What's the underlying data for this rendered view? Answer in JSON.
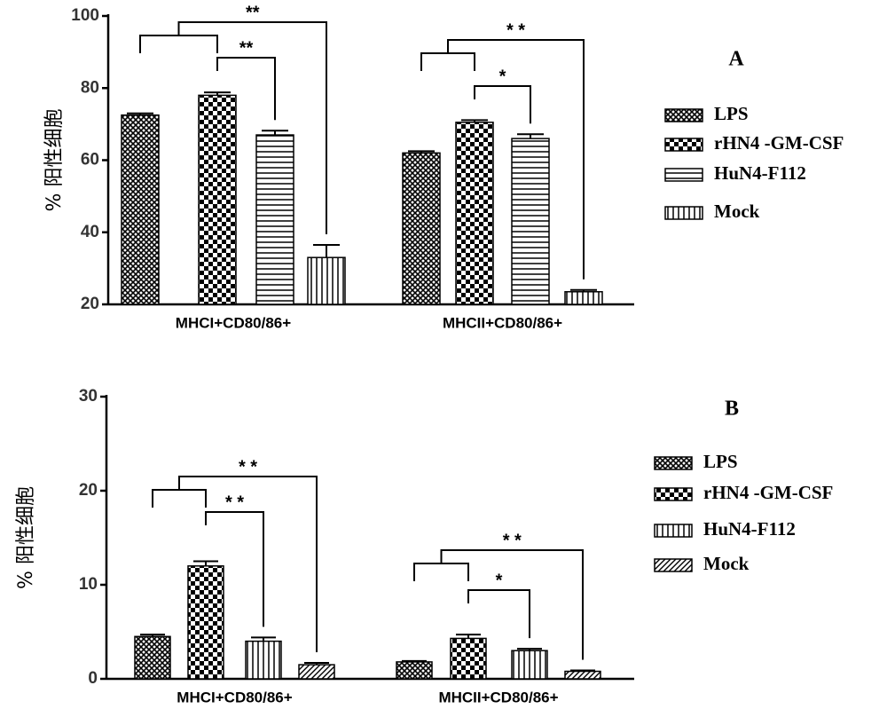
{
  "chart_data": [
    {
      "type": "bar",
      "panel": "A",
      "ylabel": "% 阳性细胞",
      "categories": [
        "MHCI+CD80/86+",
        "MHCII+CD80/86+"
      ],
      "ylim": [
        20,
        100
      ],
      "yticks": [
        20,
        40,
        60,
        80,
        100
      ],
      "series": [
        {
          "name": "LPS",
          "color": "#000000",
          "pattern": "crosshatch",
          "values": [
            72.5,
            62
          ],
          "errors": [
            0.5,
            0.5
          ]
        },
        {
          "name": "rHN4 -GM-CSF",
          "color": "#000000",
          "pattern": "checker",
          "values": [
            78,
            70.5
          ],
          "errors": [
            0.8,
            0.6
          ]
        },
        {
          "name": "HuN4-F112",
          "color": "#000000",
          "pattern": "horizontal",
          "values": [
            67,
            66
          ],
          "errors": [
            1.2,
            1.2
          ]
        },
        {
          "name": "Mock",
          "color": "#000000",
          "pattern": "vertical",
          "values": [
            33,
            23.5
          ],
          "errors": [
            3.5,
            0.5
          ]
        }
      ],
      "annotations": [
        "**",
        "**",
        "* *",
        "*"
      ]
    },
    {
      "type": "bar",
      "panel": "B",
      "ylabel": "% 阳性细胞",
      "categories": [
        "MHCI+CD80/86+",
        "MHCII+CD80/86+"
      ],
      "ylim": [
        0,
        30
      ],
      "yticks": [
        0,
        10,
        20,
        30
      ],
      "series": [
        {
          "name": "LPS",
          "color": "#000000",
          "pattern": "crosshatch",
          "values": [
            4.5,
            1.8
          ],
          "errors": [
            0.2,
            0.1
          ]
        },
        {
          "name": "rHN4 -GM-CSF",
          "color": "#000000",
          "pattern": "checker",
          "values": [
            12,
            4.3
          ],
          "errors": [
            0.5,
            0.4
          ]
        },
        {
          "name": "HuN4-F112",
          "color": "#000000",
          "pattern": "vertical",
          "values": [
            4,
            3
          ],
          "errors": [
            0.4,
            0.2
          ]
        },
        {
          "name": "Mock",
          "color": "#000000",
          "pattern": "diagonal",
          "values": [
            1.5,
            0.8
          ],
          "errors": [
            0.2,
            0.1
          ]
        }
      ],
      "annotations": [
        "* *",
        "* *",
        "* *",
        "*"
      ]
    }
  ]
}
